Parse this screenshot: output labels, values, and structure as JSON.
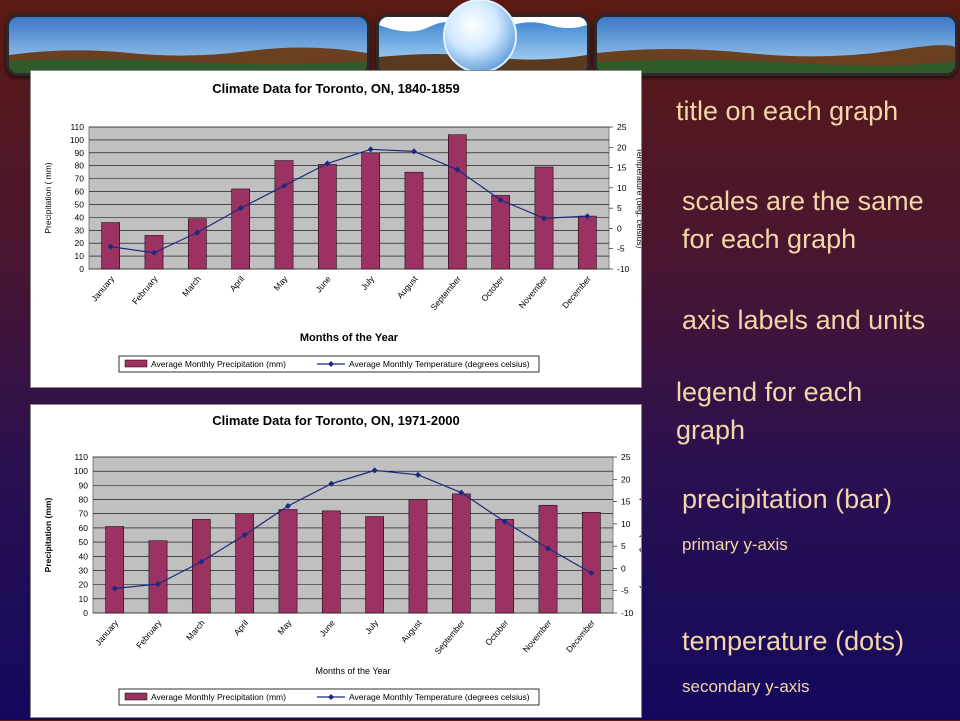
{
  "annotations": {
    "title_note": "title on each graph",
    "scales_note_1": "scales are the same",
    "scales_note_2": "for each graph",
    "axis_note": "axis labels and units",
    "legend_note_1": "legend for each",
    "legend_note_2": "graph",
    "precip_note": "precipitation (bar)",
    "precip_sub": "primary y-axis",
    "temp_note": "temperature (dots)",
    "temp_sub": "secondary y-axis"
  },
  "colors": {
    "bar": "#9c3262",
    "line": "#1a2a80",
    "plot_bg": "#c0c0c0",
    "annotation_text": "#f3d7a8"
  },
  "chart_data": [
    {
      "type": "bar",
      "title": "Climate Data for Toronto, ON, 1840-1859",
      "xlabel": "Months of the Year",
      "ylabel": "Precipitation ( mm)",
      "y2label": "Temperature (deg. celsius)",
      "ylim": [
        0,
        110
      ],
      "y2lim": [
        -10,
        25
      ],
      "yticks": [
        0,
        10,
        20,
        30,
        40,
        50,
        60,
        70,
        80,
        90,
        100,
        110
      ],
      "y2ticks": [
        -10,
        -5,
        0,
        5,
        10,
        15,
        20,
        25
      ],
      "categories": [
        "January",
        "February",
        "March",
        "April",
        "May",
        "June",
        "July",
        "August",
        "September",
        "October",
        "November",
        "December"
      ],
      "series": [
        {
          "name": "Average Monthly Precipitation (mm)",
          "type": "bar",
          "values": [
            36,
            26,
            39,
            62,
            84,
            81,
            90,
            75,
            104,
            57,
            79,
            41
          ]
        },
        {
          "name": "Average Monthly Temperature (degrees celsius)",
          "type": "line",
          "axis": "secondary",
          "values": [
            -4.5,
            -6,
            -1,
            5,
            10.5,
            16,
            19.5,
            19,
            14.5,
            7,
            2.5,
            3
          ]
        }
      ],
      "legend": "bottom",
      "grid": true
    },
    {
      "type": "bar",
      "title": "Climate Data for Toronto, ON, 1971-2000",
      "xlabel": "Months of the Year",
      "ylabel": "Precipitation (mm)",
      "y2label": "Temperature (deg. celsius)",
      "ylim": [
        0,
        110
      ],
      "y2lim": [
        -10,
        25
      ],
      "yticks": [
        0,
        10,
        20,
        30,
        40,
        50,
        60,
        70,
        80,
        90,
        100,
        110
      ],
      "y2ticks": [
        -10,
        -5,
        0,
        5,
        10,
        15,
        20,
        25
      ],
      "categories": [
        "January",
        "February",
        "March",
        "April",
        "May",
        "June",
        "July",
        "August",
        "September",
        "October",
        "November",
        "December"
      ],
      "series": [
        {
          "name": "Average Monthly Precipitation (mm)",
          "type": "bar",
          "values": [
            61,
            51,
            66,
            70,
            73,
            72,
            68,
            80,
            84,
            66,
            76,
            71
          ]
        },
        {
          "name": "Average Monthly Temperature (degrees celsius)",
          "type": "line",
          "axis": "secondary",
          "values": [
            -4.5,
            -3.5,
            1.5,
            7.5,
            14,
            19,
            22,
            21,
            17,
            10.5,
            4.5,
            -1
          ]
        }
      ],
      "legend": "bottom",
      "grid": true
    }
  ]
}
